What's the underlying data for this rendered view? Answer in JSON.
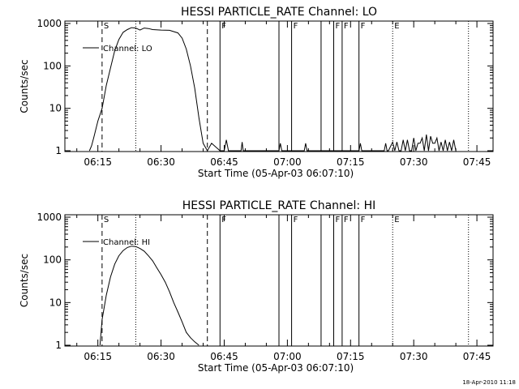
{
  "chart_data": [
    {
      "type": "line",
      "title": "HESSI PARTICLE_RATE Channel: LO",
      "xlabel": "Start Time (05-Apr-03 06:07:10)",
      "ylabel": "Counts/sec",
      "y_scale": "log",
      "ylim": [
        1,
        1000
      ],
      "x_ticks": [
        "06:15",
        "06:30",
        "06:45",
        "07:00",
        "07:15",
        "07:30",
        "07:45"
      ],
      "y_ticks": [
        "1",
        "10",
        "100",
        "1000"
      ],
      "legend": {
        "position": "top-left",
        "entries": [
          "Channel: LO"
        ]
      },
      "series": [
        {
          "name": "Channel: LO",
          "x": [
            "06:13:00",
            "06:13:30",
            "06:14:00",
            "06:15:00",
            "06:16:00",
            "06:17:00",
            "06:18:00",
            "06:19:00",
            "06:20:00",
            "06:21:00",
            "06:22:00",
            "06:23:00",
            "06:24:00",
            "06:25:00",
            "06:26:00",
            "06:27:00",
            "06:28:00",
            "06:30:00",
            "06:32:00",
            "06:34:00",
            "06:35:00",
            "06:36:00",
            "06:37:00",
            "06:38:00",
            "06:39:00",
            "06:40:00",
            "06:41:00",
            "06:42:00",
            "06:44:00",
            "06:45:00",
            "06:45:30",
            "06:46:00",
            "06:49:00",
            "06:49:15",
            "06:49:30",
            "06:50:00",
            "06:58:00",
            "06:58:20",
            "06:58:40",
            "06:59:00",
            "07:04:00",
            "07:04:20",
            "07:04:40",
            "07:05:00",
            "07:17:00",
            "07:17:20",
            "07:17:40",
            "07:18:00",
            "07:23:00",
            "07:23:20",
            "07:23:40",
            "07:24:00",
            "07:25:00",
            "07:25:30",
            "07:26:00",
            "07:26:30",
            "07:27:00",
            "07:27:30",
            "07:28:00",
            "07:28:30",
            "07:29:00",
            "07:29:30",
            "07:30:00",
            "07:30:30",
            "07:31:00",
            "07:31:30",
            "07:32:00",
            "07:32:30",
            "07:33:00",
            "07:33:30",
            "07:34:00",
            "07:34:30",
            "07:35:00",
            "07:35:30",
            "07:36:00",
            "07:36:30",
            "07:37:00",
            "07:37:30",
            "07:38:00",
            "07:38:30",
            "07:39:00",
            "07:39:30",
            "07:40:00"
          ],
          "values": [
            0.9,
            1.3,
            2,
            5,
            10,
            35,
            90,
            230,
            420,
            620,
            720,
            800,
            780,
            700,
            780,
            760,
            720,
            700,
            690,
            600,
            450,
            250,
            100,
            30,
            6,
            1.5,
            1,
            1.5,
            1,
            1,
            1.8,
            1,
            1,
            1.6,
            1,
            1,
            1,
            1.5,
            1,
            1,
            1,
            1.5,
            1,
            1,
            1,
            1.5,
            1,
            1,
            1,
            1.5,
            1,
            1,
            1.6,
            1,
            1.6,
            1,
            1,
            1.8,
            1,
            1.8,
            1,
            1,
            2,
            1,
            1.5,
            1.5,
            2,
            1,
            2.4,
            1,
            2.2,
            1.5,
            1.5,
            2,
            1,
            1.6,
            1,
            1.8,
            1,
            1.6,
            1,
            1.8,
            1
          ]
        }
      ],
      "markers": [
        {
          "time": "06:16:00",
          "style": "dashed",
          "label": "S"
        },
        {
          "time": "06:24:00",
          "style": "dotted",
          "label": ""
        },
        {
          "time": "06:41:00",
          "style": "dashed",
          "label": ""
        },
        {
          "time": "06:44:00",
          "style": "solid",
          "label": "F"
        },
        {
          "time": "06:58:00",
          "style": "solid",
          "label": ""
        },
        {
          "time": "07:01:00",
          "style": "solid",
          "label": "F"
        },
        {
          "time": "07:08:00",
          "style": "solid",
          "label": ""
        },
        {
          "time": "07:11:00",
          "style": "solid",
          "label": "F"
        },
        {
          "time": "07:13:00",
          "style": "solid",
          "label": "F"
        },
        {
          "time": "07:17:00",
          "style": "solid",
          "label": "F"
        },
        {
          "time": "07:25:00",
          "style": "dotted",
          "label": "E"
        },
        {
          "time": "07:43:00",
          "style": "dotted",
          "label": ""
        }
      ]
    },
    {
      "type": "line",
      "title": "HESSI PARTICLE_RATE Channel: HI",
      "xlabel": "Start Time (05-Apr-03 06:07:10)",
      "ylabel": "Counts/sec",
      "y_scale": "log",
      "ylim": [
        1,
        1000
      ],
      "x_ticks": [
        "06:15",
        "06:30",
        "06:45",
        "07:00",
        "07:15",
        "07:30",
        "07:45"
      ],
      "y_ticks": [
        "1",
        "10",
        "100",
        "1000"
      ],
      "legend": {
        "position": "top-left",
        "entries": [
          "Channel: HI"
        ]
      },
      "series": [
        {
          "name": "Channel: HI",
          "x": [
            "06:15:30",
            "06:16:00",
            "06:17:00",
            "06:18:00",
            "06:19:00",
            "06:20:00",
            "06:21:00",
            "06:22:00",
            "06:23:00",
            "06:24:00",
            "06:25:00",
            "06:26:00",
            "06:27:00",
            "06:28:00",
            "06:29:00",
            "06:30:00",
            "06:31:00",
            "06:32:00",
            "06:33:00",
            "06:34:00",
            "06:35:00",
            "06:36:00",
            "06:37:00",
            "06:38:00",
            "06:39:00"
          ],
          "values": [
            0.9,
            4,
            15,
            40,
            80,
            125,
            165,
            195,
            210,
            205,
            185,
            160,
            125,
            95,
            65,
            45,
            30,
            18,
            10,
            6,
            3.5,
            2,
            1.5,
            1.2,
            0.9
          ]
        }
      ],
      "markers": [
        {
          "time": "06:16:00",
          "style": "dashed",
          "label": "S"
        },
        {
          "time": "06:24:00",
          "style": "dotted",
          "label": ""
        },
        {
          "time": "06:41:00",
          "style": "dashed",
          "label": ""
        },
        {
          "time": "06:44:00",
          "style": "solid",
          "label": "F"
        },
        {
          "time": "06:58:00",
          "style": "solid",
          "label": ""
        },
        {
          "time": "07:01:00",
          "style": "solid",
          "label": "F"
        },
        {
          "time": "07:08:00",
          "style": "solid",
          "label": ""
        },
        {
          "time": "07:11:00",
          "style": "solid",
          "label": "F"
        },
        {
          "time": "07:13:00",
          "style": "solid",
          "label": "F"
        },
        {
          "time": "07:17:00",
          "style": "solid",
          "label": "F"
        },
        {
          "time": "07:25:00",
          "style": "dotted",
          "label": "E"
        },
        {
          "time": "07:43:00",
          "style": "dotted",
          "label": ""
        }
      ]
    }
  ],
  "footer": {
    "timestamp": "18-Apr-2010 11:18"
  }
}
